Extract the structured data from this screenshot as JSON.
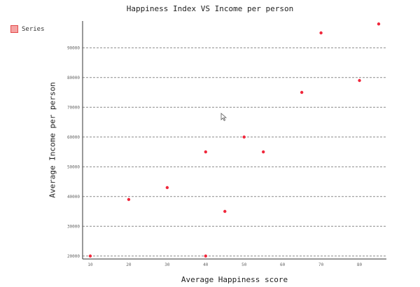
{
  "chart_data": {
    "type": "scatter",
    "title": "Happiness Index VS Income per person",
    "xlabel": "Average Happiness score",
    "ylabel": "Average Income per person",
    "xlim": [
      8,
      87
    ],
    "ylim": [
      19000,
      99000
    ],
    "x_ticks": [
      10,
      20,
      30,
      40,
      50,
      60,
      70,
      80
    ],
    "y_ticks": [
      20000,
      30000,
      40000,
      50000,
      60000,
      70000,
      80000,
      90000
    ],
    "grid": "horizontal-dashed",
    "legend": "top-left",
    "series": [
      {
        "name": "Series",
        "color": "#f0283c",
        "points": [
          {
            "x": 10,
            "y": 20000
          },
          {
            "x": 20,
            "y": 39000
          },
          {
            "x": 30,
            "y": 43000
          },
          {
            "x": 40,
            "y": 55000
          },
          {
            "x": 40,
            "y": 20000
          },
          {
            "x": 45,
            "y": 35000
          },
          {
            "x": 50,
            "y": 60000
          },
          {
            "x": 55,
            "y": 55000
          },
          {
            "x": 65,
            "y": 75000
          },
          {
            "x": 70,
            "y": 95000
          },
          {
            "x": 80,
            "y": 79000
          },
          {
            "x": 85,
            "y": 98000
          }
        ]
      }
    ]
  },
  "icons": {
    "cursor": "mouse-pointer-icon"
  }
}
